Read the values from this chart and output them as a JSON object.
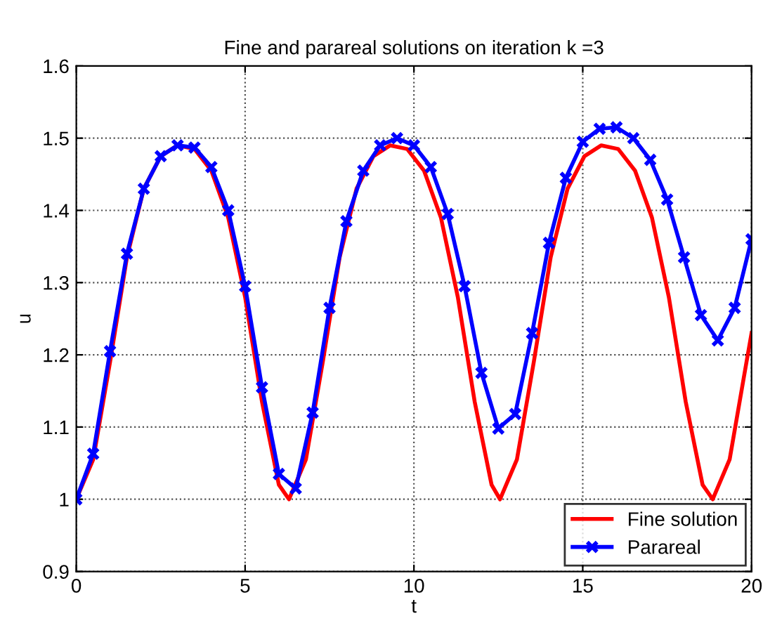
{
  "chart_data": {
    "type": "line",
    "title": "Fine and parareal solutions on iteration k =3",
    "xlabel": "t",
    "ylabel": "u",
    "xlim": [
      0,
      20
    ],
    "ylim": [
      0.9,
      1.6
    ],
    "xticks": [
      0,
      5,
      10,
      15,
      20
    ],
    "yticks": [
      0.9,
      1,
      1.1,
      1.2,
      1.3,
      1.4,
      1.5,
      1.6
    ],
    "grid": true,
    "legend": "bottom right",
    "line_style": "solid",
    "series": [
      {
        "name": "Fine solution",
        "color": "#ff0000",
        "marker": "none",
        "x": [
          0,
          0.5,
          1,
          1.5,
          2,
          2.5,
          3,
          3.5,
          4,
          4.5,
          5,
          5.5,
          6,
          6.3,
          6.8,
          7.3,
          7.8,
          8.3,
          8.8,
          9.3,
          9.8,
          10.3,
          10.8,
          11.3,
          11.8,
          12.3,
          12.55,
          13.05,
          13.55,
          14.05,
          14.55,
          15.05,
          15.55,
          16.05,
          16.55,
          17.05,
          17.55,
          18.05,
          18.55,
          18.85,
          19.35,
          19.85,
          20
        ],
        "values": [
          1.0,
          1.055,
          1.19,
          1.335,
          1.43,
          1.475,
          1.49,
          1.485,
          1.455,
          1.39,
          1.28,
          1.135,
          1.02,
          1.0,
          1.055,
          1.19,
          1.335,
          1.43,
          1.475,
          1.49,
          1.485,
          1.455,
          1.39,
          1.28,
          1.135,
          1.02,
          1.0,
          1.055,
          1.19,
          1.335,
          1.43,
          1.475,
          1.49,
          1.485,
          1.455,
          1.39,
          1.28,
          1.135,
          1.02,
          1.0,
          1.055,
          1.19,
          1.23
        ]
      },
      {
        "name": "Parareal",
        "color": "#0000ff",
        "marker": "cross",
        "x": [
          0,
          0.5,
          1,
          1.5,
          2,
          2.5,
          3,
          3.5,
          4,
          4.5,
          5,
          5.5,
          6,
          6.5,
          7,
          7.5,
          8,
          8.5,
          9,
          9.5,
          10,
          10.5,
          11,
          11.5,
          12,
          12.5,
          13,
          13.5,
          14,
          14.5,
          15,
          15.5,
          16,
          16.5,
          17,
          17.5,
          18,
          18.5,
          19,
          19.5,
          20
        ],
        "values": [
          1.0,
          1.063,
          1.205,
          1.34,
          1.43,
          1.475,
          1.49,
          1.487,
          1.46,
          1.4,
          1.295,
          1.155,
          1.035,
          1.015,
          1.12,
          1.265,
          1.385,
          1.455,
          1.49,
          1.5,
          1.49,
          1.46,
          1.395,
          1.295,
          1.175,
          1.098,
          1.118,
          1.23,
          1.355,
          1.445,
          1.495,
          1.513,
          1.515,
          1.5,
          1.47,
          1.415,
          1.335,
          1.255,
          1.22,
          1.265,
          1.36
        ]
      }
    ]
  }
}
